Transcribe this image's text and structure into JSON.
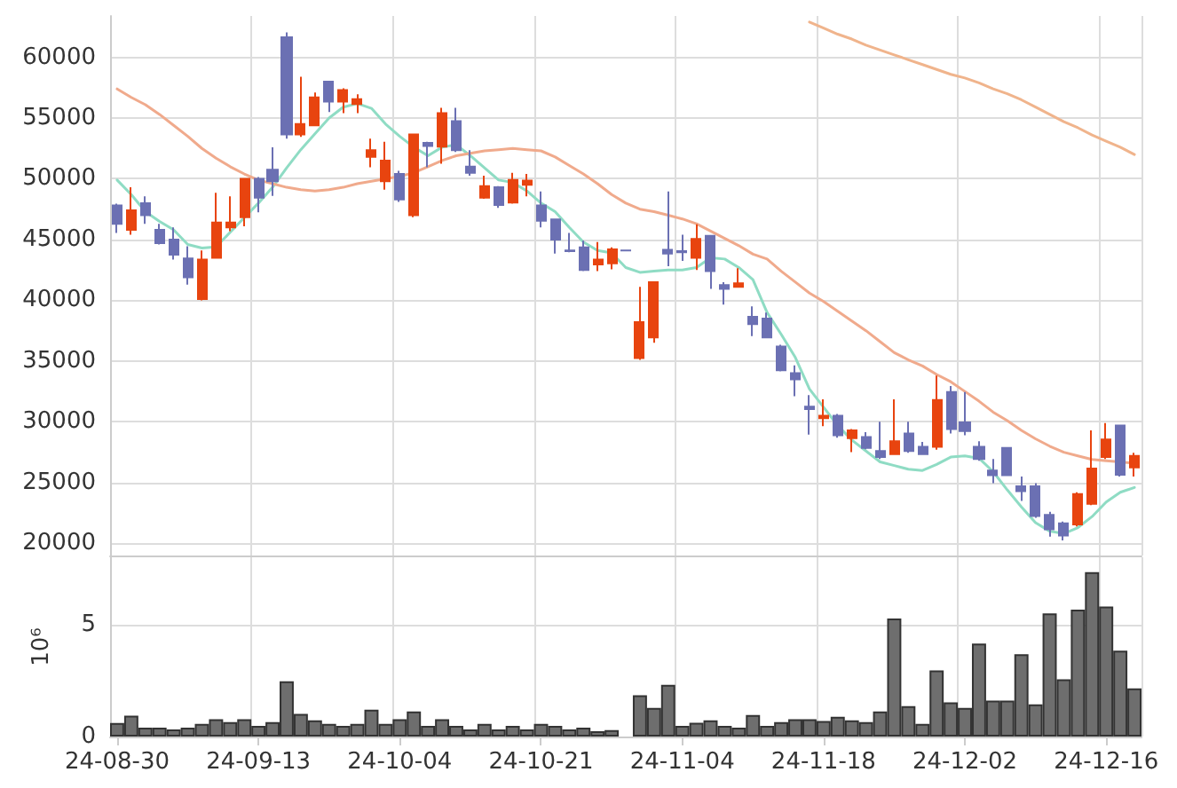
{
  "chart_data": [
    {
      "type": "candlestick",
      "categories": [
        null,
        null,
        null,
        null,
        null,
        null,
        null,
        null,
        null,
        null,
        null,
        null,
        null,
        null,
        null,
        null,
        null,
        null,
        null,
        null,
        null,
        null,
        null,
        null,
        null,
        null,
        null,
        null,
        null,
        null,
        null,
        null,
        null,
        null,
        null,
        null,
        null,
        null,
        null,
        null,
        null,
        null,
        null,
        null,
        null,
        null,
        null,
        null,
        null,
        null,
        null,
        null,
        null,
        null,
        null,
        null,
        null,
        null,
        null,
        null,
        null,
        null,
        null,
        null,
        null,
        null,
        null,
        null,
        null,
        null,
        null,
        null,
        null
      ],
      "ohlc": [
        [
          47800,
          47950,
          45550,
          46300
        ],
        [
          45800,
          49300,
          45400,
          47400
        ],
        [
          48000,
          48550,
          46300,
          47000
        ],
        [
          45800,
          46300,
          44600,
          44700
        ],
        [
          45000,
          46000,
          43350,
          43750
        ],
        [
          43450,
          44450,
          41300,
          41900
        ],
        [
          40100,
          44100,
          40000,
          43350
        ],
        [
          43500,
          48850,
          43500,
          46400
        ],
        [
          46000,
          48550,
          45700,
          46400
        ],
        [
          46850,
          50000,
          46100,
          50000
        ],
        [
          50000,
          50150,
          47250,
          48450
        ],
        [
          50750,
          52600,
          48600,
          49800
        ],
        [
          61650,
          62050,
          53300,
          53650
        ],
        [
          53650,
          58400,
          53450,
          54500
        ],
        [
          54400,
          57100,
          54400,
          56700
        ],
        [
          58000,
          58000,
          55500,
          56350
        ],
        [
          56350,
          57450,
          55400,
          57300
        ],
        [
          56150,
          56950,
          55400,
          56550
        ],
        [
          51800,
          53300,
          50950,
          52350
        ],
        [
          49800,
          53050,
          49100,
          51500
        ],
        [
          50400,
          50650,
          48100,
          48300
        ],
        [
          47000,
          53650,
          46850,
          53650
        ],
        [
          52950,
          53050,
          50950,
          52700
        ],
        [
          52650,
          55850,
          51250,
          55400
        ],
        [
          54750,
          55850,
          52200,
          52350
        ],
        [
          51000,
          52350,
          50250,
          50500
        ],
        [
          48450,
          50250,
          48350,
          49400
        ],
        [
          49300,
          49400,
          47600,
          47850
        ],
        [
          48050,
          50500,
          47950,
          49900
        ],
        [
          49500,
          50400,
          48550,
          49850
        ],
        [
          47800,
          48950,
          46000,
          46550
        ],
        [
          46650,
          46650,
          43850,
          45000
        ],
        [
          44100,
          45550,
          43950,
          44050
        ],
        [
          44350,
          44900,
          42400,
          42500
        ],
        [
          42950,
          44800,
          42400,
          43350
        ],
        [
          43050,
          44350,
          42550,
          44200
        ],
        [
          44100,
          44100,
          44100,
          44100
        ],
        [
          35250,
          41100,
          35100,
          38200
        ],
        [
          36950,
          41500,
          36500,
          41500
        ],
        [
          44150,
          48950,
          42800,
          43850
        ],
        [
          44050,
          45400,
          43250,
          43950
        ],
        [
          43500,
          46250,
          42500,
          45050
        ],
        [
          45300,
          45300,
          40950,
          42400
        ],
        [
          41250,
          41500,
          39650,
          40950
        ],
        [
          41100,
          42650,
          41100,
          41400
        ],
        [
          38650,
          39500,
          37050,
          38050
        ],
        [
          38500,
          39000,
          36950,
          36950
        ],
        [
          36200,
          36350,
          34150,
          34250
        ],
        [
          34000,
          34650,
          32100,
          33500
        ],
        [
          31250,
          32200,
          28950,
          31050
        ],
        [
          30300,
          31850,
          29650,
          30500
        ],
        [
          30500,
          30650,
          28700,
          28900
        ],
        [
          28650,
          29400,
          27500,
          29300
        ],
        [
          28750,
          29150,
          27750,
          27850
        ],
        [
          27600,
          30000,
          26950,
          27100
        ],
        [
          27350,
          31850,
          27350,
          28400
        ],
        [
          29050,
          30000,
          27450,
          27600
        ],
        [
          27950,
          28350,
          27350,
          27350
        ],
        [
          27950,
          33800,
          27700,
          31800
        ],
        [
          32450,
          32950,
          29050,
          29400
        ],
        [
          29950,
          32450,
          28900,
          29250
        ],
        [
          27950,
          28400,
          26800,
          26950
        ],
        [
          26000,
          26950,
          24950,
          25600
        ],
        [
          27850,
          27850,
          25600,
          25600
        ],
        [
          24700,
          25500,
          23500,
          24300
        ],
        [
          24700,
          24950,
          22100,
          22250
        ],
        [
          22350,
          22600,
          20550,
          21150
        ],
        [
          21650,
          21800,
          20250,
          20650
        ],
        [
          21550,
          24200,
          21400,
          24050
        ],
        [
          23250,
          29300,
          23150,
          26150
        ],
        [
          27100,
          29900,
          26950,
          28550
        ],
        [
          29700,
          29700,
          25500,
          25650
        ],
        [
          26250,
          27450,
          25500,
          27200
        ]
      ],
      "colors": [
        "#6b70b3",
        "#e8440f",
        "#6b70b3",
        "#6b70b3",
        "#6b70b3",
        "#6b70b3",
        "#e8440f",
        "#e8440f",
        "#e8440f",
        "#e8440f",
        "#6b70b3",
        "#6b70b3",
        "#6b70b3",
        "#e8440f",
        "#e8440f",
        "#6b70b3",
        "#e8440f",
        "#e8440f",
        "#e8440f",
        "#e8440f",
        "#6b70b3",
        "#e8440f",
        "#6b70b3",
        "#e8440f",
        "#6b70b3",
        "#6b70b3",
        "#e8440f",
        "#6b70b3",
        "#e8440f",
        "#e8440f",
        "#6b70b3",
        "#6b70b3",
        "#6b70b3",
        "#6b70b3",
        "#e8440f",
        "#e8440f",
        "#6b70b3",
        "#e8440f",
        "#e8440f",
        "#6b70b3",
        "#6b70b3",
        "#e8440f",
        "#6b70b3",
        "#6b70b3",
        "#e8440f",
        "#6b70b3",
        "#6b70b3",
        "#6b70b3",
        "#6b70b3",
        "#6b70b3",
        "#e8440f",
        "#6b70b3",
        "#e8440f",
        "#6b70b3",
        "#6b70b3",
        "#e8440f",
        "#6b70b3",
        "#6b70b3",
        "#e8440f",
        "#6b70b3",
        "#6b70b3",
        "#6b70b3",
        "#6b70b3",
        "#6b70b3",
        "#6b70b3",
        "#6b70b3",
        "#6b70b3",
        "#6b70b3",
        "#e8440f",
        "#e8440f",
        "#e8440f",
        "#6b70b3",
        "#e8440f"
      ],
      "series": [
        {
          "type": "line",
          "color": "#8fdcc4",
          "values": [
            49900,
            48700,
            47300,
            46500,
            45800,
            44600,
            44300,
            44400,
            45600,
            46800,
            48000,
            49300,
            50900,
            52400,
            53700,
            55000,
            55900,
            56200,
            55800,
            54500,
            53500,
            52600,
            51900,
            52600,
            52800,
            51900,
            50900,
            49900,
            49700,
            49000,
            48000,
            47300,
            46000,
            44800,
            44100,
            43900,
            42700,
            42300,
            42400,
            42500,
            42500,
            42700,
            43500,
            43400,
            42700,
            41700,
            39000,
            37200,
            35300,
            32700,
            31200,
            29700,
            28500,
            27600,
            26700,
            26400,
            26100,
            26000,
            26500,
            27100,
            27200,
            27000,
            25900,
            24400,
            23000,
            21700,
            21000,
            20800,
            21300,
            22200,
            23400,
            24200,
            24600
          ]
        },
        {
          "type": "line",
          "color": "#f0aa8c",
          "values": [
            57400,
            56700,
            56100,
            55300,
            54400,
            53500,
            52500,
            51700,
            51000,
            50400,
            49900,
            49600,
            49300,
            49100,
            49000,
            49100,
            49300,
            49600,
            49800,
            50000,
            50200,
            50500,
            51000,
            51500,
            51900,
            52100,
            52300,
            52400,
            52500,
            52400,
            52300,
            51800,
            51100,
            50400,
            49600,
            48700,
            48000,
            47500,
            47300,
            47000,
            46700,
            46300,
            45700,
            45100,
            44500,
            43800,
            43400,
            42400,
            41500,
            40600,
            39900,
            39100,
            38300,
            37500,
            36600,
            35700,
            35100,
            34600,
            33900,
            33300,
            32500,
            31700,
            30800,
            30100,
            29300,
            28600,
            28000,
            27500,
            27200,
            26900,
            26800,
            26700,
            26600
          ]
        },
        {
          "type": "line",
          "color": "#f0b48c",
          "values": [
            null,
            null,
            null,
            null,
            null,
            null,
            null,
            null,
            null,
            null,
            null,
            null,
            null,
            null,
            null,
            null,
            null,
            null,
            null,
            null,
            null,
            null,
            null,
            null,
            null,
            null,
            null,
            null,
            null,
            null,
            null,
            null,
            null,
            null,
            null,
            null,
            null,
            null,
            null,
            null,
            null,
            null,
            null,
            null,
            null,
            null,
            null,
            null,
            null,
            62900,
            62400,
            61900,
            61500,
            61000,
            60600,
            60200,
            59800,
            59400,
            59000,
            58600,
            58300,
            57900,
            57400,
            57000,
            56500,
            55900,
            55300,
            54700,
            54200,
            53600,
            53100,
            52600,
            52000
          ]
        }
      ],
      "ylim": [
        19000,
        63400
      ],
      "yticks": [
        20000,
        25000,
        30000,
        35000,
        40000,
        45000,
        50000,
        55000,
        60000
      ],
      "grid": true,
      "tick_labels": "y"
    },
    {
      "type": "bar",
      "categories": [
        "24-08-30",
        null,
        null,
        null,
        null,
        null,
        null,
        null,
        null,
        null,
        "24-09-13",
        null,
        null,
        null,
        null,
        null,
        null,
        null,
        null,
        null,
        "24-10-04",
        null,
        null,
        null,
        null,
        null,
        null,
        null,
        null,
        null,
        "24-10-21",
        null,
        null,
        null,
        null,
        null,
        null,
        null,
        null,
        null,
        "24-11-04",
        null,
        null,
        null,
        null,
        null,
        null,
        null,
        null,
        null,
        "24-11-18",
        null,
        null,
        null,
        null,
        null,
        null,
        null,
        null,
        null,
        "24-12-02",
        null,
        null,
        null,
        null,
        null,
        null,
        null,
        null,
        null,
        "24-12-16",
        null,
        null
      ],
      "values": [
        0.6,
        0.93,
        0.4,
        0.4,
        0.32,
        0.4,
        0.56,
        0.77,
        0.64,
        0.77,
        0.48,
        0.64,
        2.47,
        1.01,
        0.72,
        0.56,
        0.48,
        0.56,
        1.2,
        0.56,
        0.77,
        1.12,
        0.48,
        0.77,
        0.48,
        0.32,
        0.56,
        0.32,
        0.48,
        0.32,
        0.56,
        0.48,
        0.32,
        0.4,
        0.24,
        0.29,
        null,
        1.84,
        1.28,
        2.31,
        0.48,
        0.61,
        0.72,
        0.48,
        0.4,
        0.96,
        0.48,
        0.64,
        0.77,
        0.77,
        0.69,
        0.88,
        0.72,
        0.64,
        1.12,
        5.27,
        1.36,
        0.56,
        2.95,
        1.52,
        1.28,
        4.15,
        1.6,
        1.6,
        3.67,
        1.44,
        5.5,
        2.55,
        5.66,
        7.34,
        5.8,
        3.83,
        2.15
      ],
      "color": "#6e6e6e",
      "ylabel": "10⁶",
      "ylim": [
        0,
        8
      ],
      "yticks": [
        0,
        5
      ],
      "grid": true
    }
  ]
}
